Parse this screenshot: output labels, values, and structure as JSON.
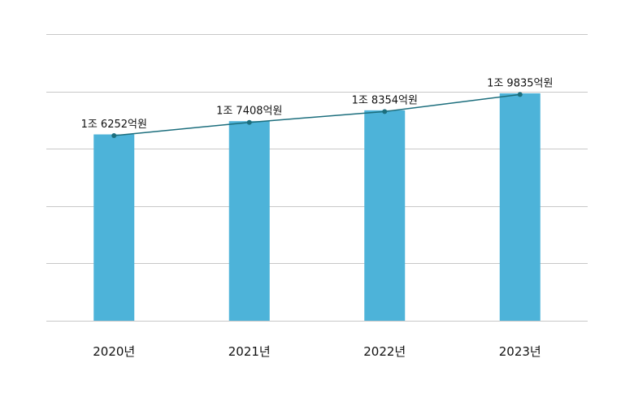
{
  "chart_data": {
    "type": "bar",
    "categories": [
      "2020년",
      "2021년",
      "2022년",
      "2023년"
    ],
    "values": [
      16252,
      17408,
      18354,
      19835
    ],
    "data_labels": [
      "1조 6252억원",
      "1조 7408억원",
      "1조 8354억원",
      "1조 9835억원"
    ],
    "unit": "억원",
    "overlay_line": true,
    "ylim": [
      0,
      25000
    ],
    "grid": true,
    "colors": {
      "bar": "#4db3d9",
      "line": "#1c6e7d",
      "grid": "#c8c8c8"
    }
  }
}
